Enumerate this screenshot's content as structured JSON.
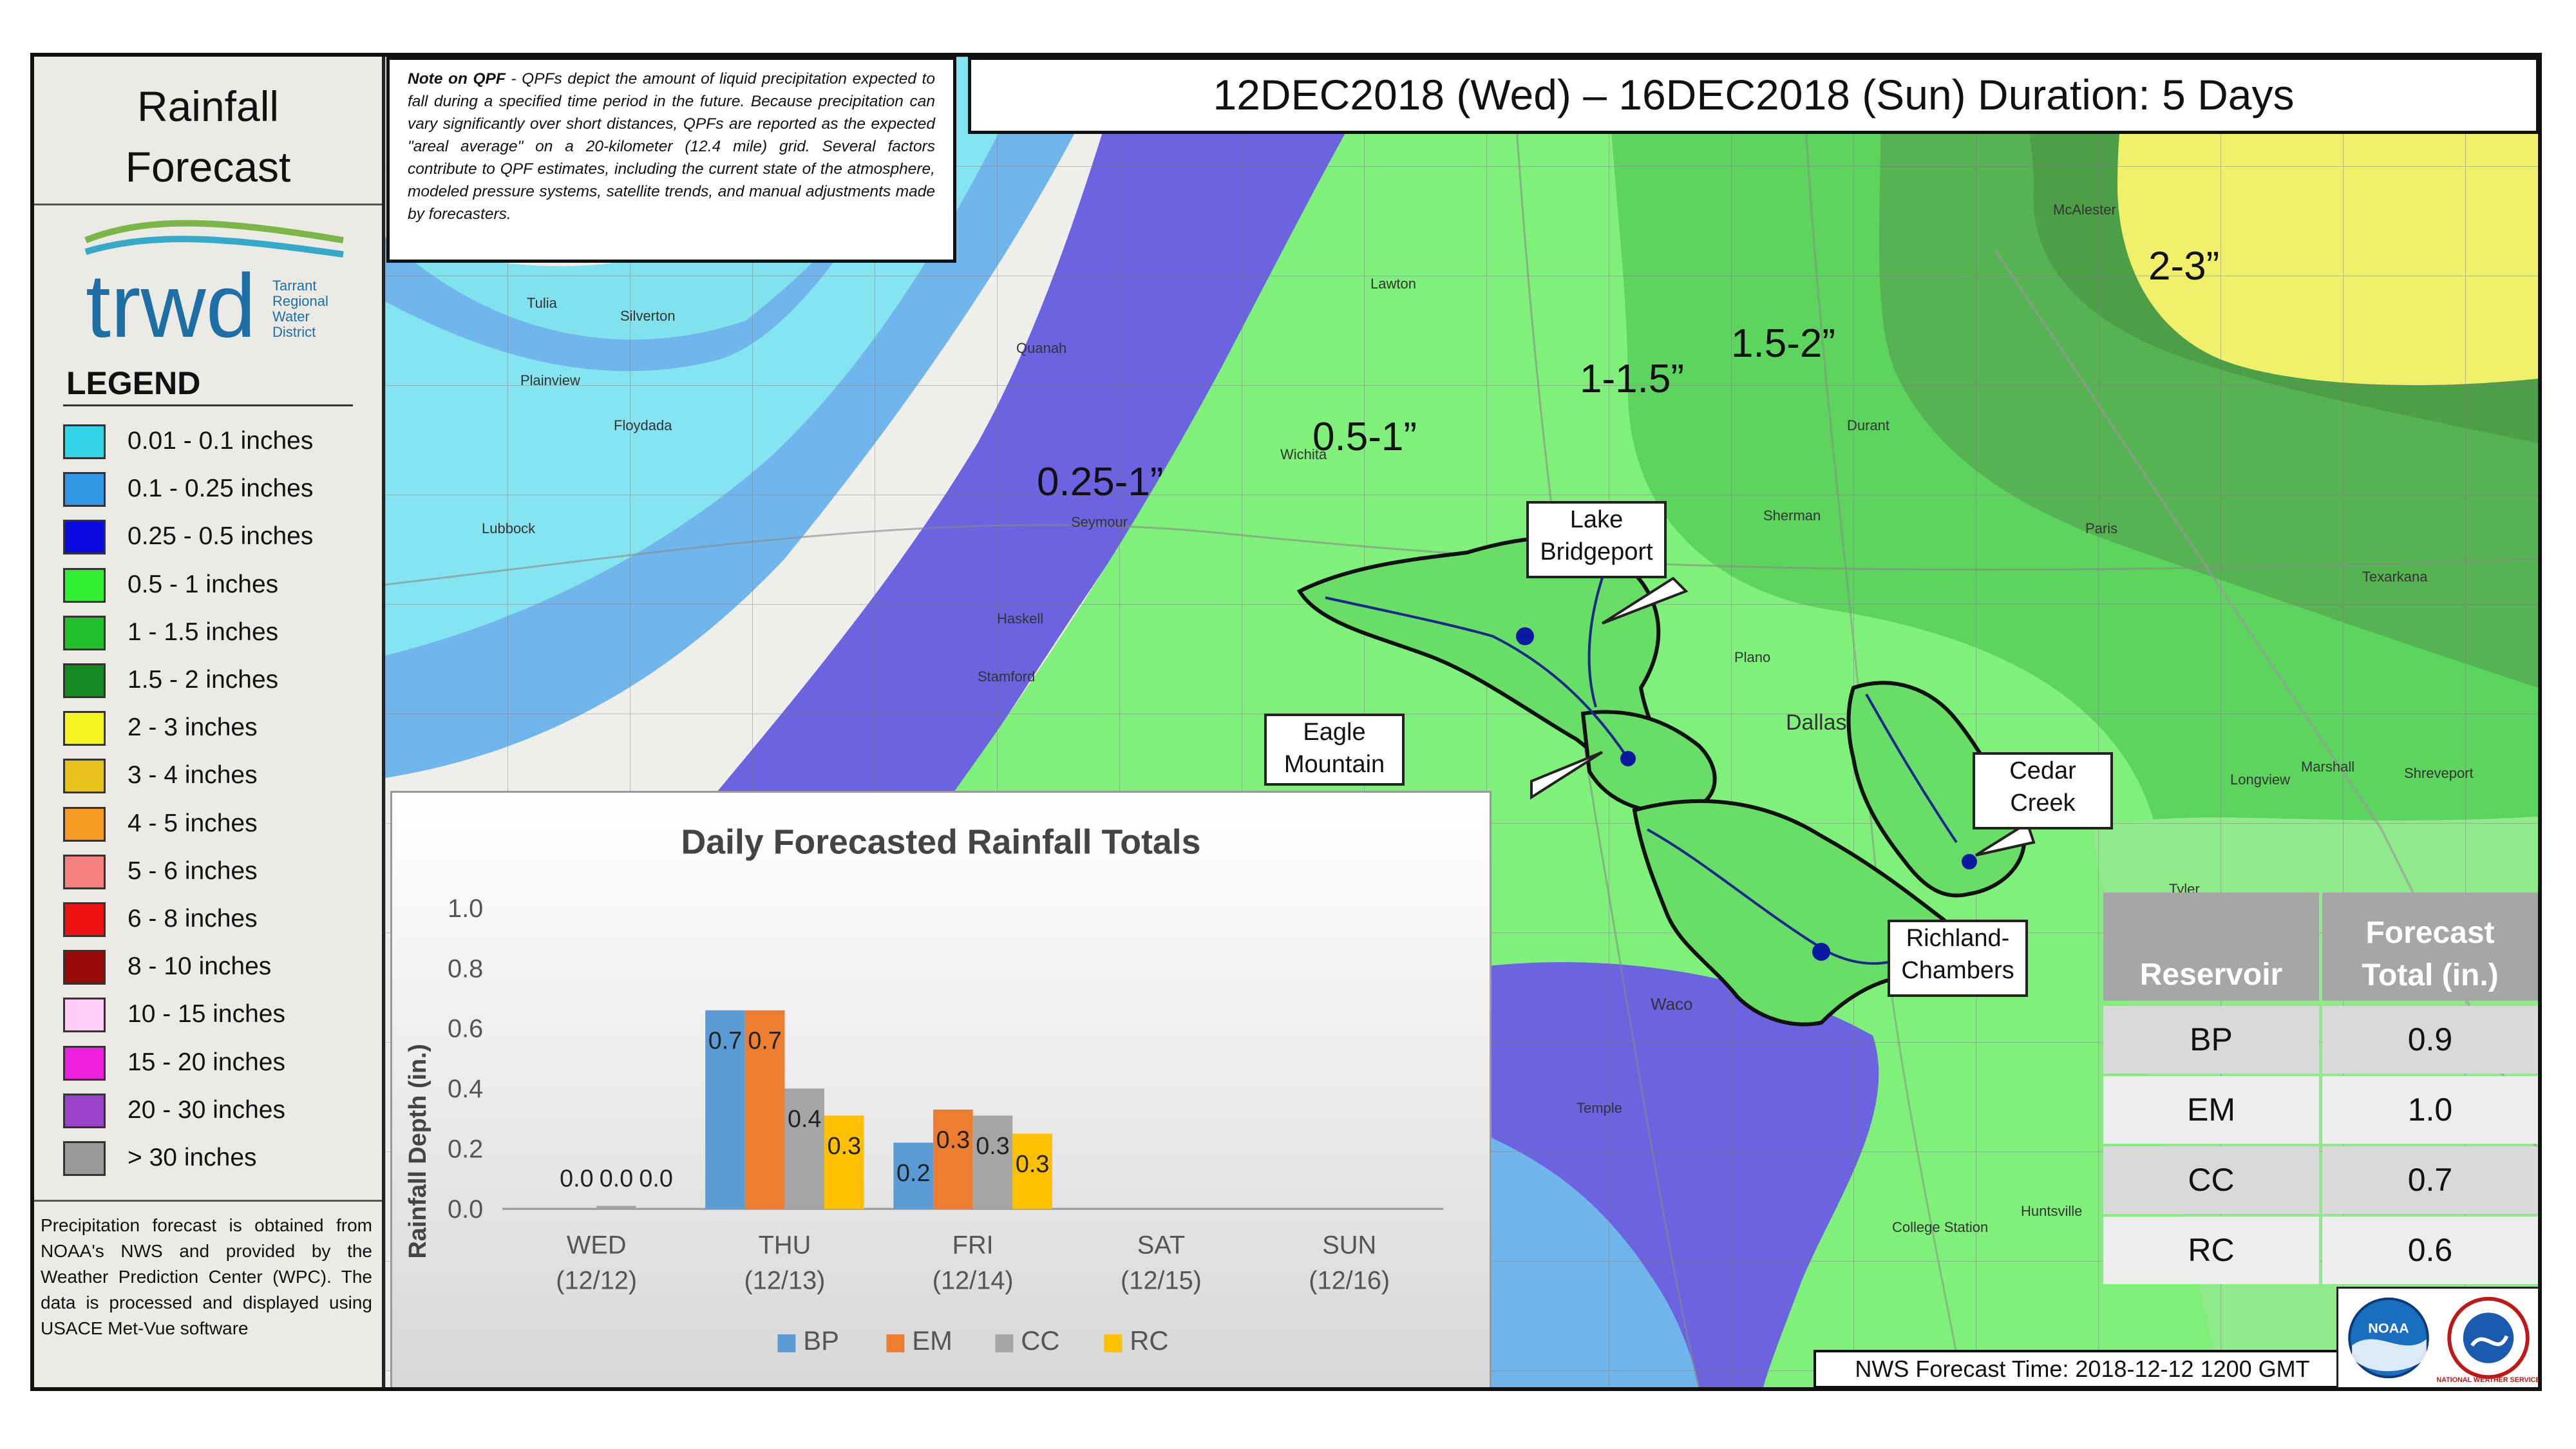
{
  "panel": {
    "title_line1": "Rainfall",
    "title_line2": "Forecast",
    "logo_text": "trwd",
    "logo_sub": [
      "Tarrant",
      "Regional",
      "Water",
      "District"
    ],
    "legend_title": "LEGEND",
    "legend": [
      {
        "label": "0.01 - 0.1 inches",
        "color": "#33d6e8"
      },
      {
        "label": "0.1 - 0.25 inches",
        "color": "#3399e6"
      },
      {
        "label": "0.25 - 0.5 inches",
        "color": "#0a0ae0"
      },
      {
        "label": "0.5 - 1 inches",
        "color": "#33f033"
      },
      {
        "label": "1 - 1.5 inches",
        "color": "#22c02a"
      },
      {
        "label": "1.5 - 2 inches",
        "color": "#178a22"
      },
      {
        "label": "2 - 3 inches",
        "color": "#f5f522"
      },
      {
        "label": "3 - 4 inches",
        "color": "#e6c21a"
      },
      {
        "label": "4 - 5 inches",
        "color": "#f59a22"
      },
      {
        "label": "5 - 6 inches",
        "color": "#f58080"
      },
      {
        "label": "6 - 8 inches",
        "color": "#ee1111"
      },
      {
        "label": "8 - 10 inches",
        "color": "#990a0a"
      },
      {
        "label": "10 - 15 inches",
        "color": "#ffccf5"
      },
      {
        "label": "15 - 20 inches",
        "color": "#f020e0"
      },
      {
        "label": "20 - 30 inches",
        "color": "#9944c8"
      },
      {
        "label": "> 30 inches",
        "color": "#999999"
      }
    ],
    "note": "Precipitation forecast is obtained from NOAA's NWS and provided by the Weather Prediction Center (WPC). The data is processed and displayed using USACE Met-Vue software"
  },
  "qpf_note": {
    "bold": "Note on QPF",
    "text": " - QPFs depict the amount of liquid precipitation expected to fall during a specified time period in the future. Because precipitation can vary significantly over short distances, QPFs are reported as the expected \"areal average\" on a 20-kilometer (12.4 mile) grid. Several factors contribute to QPF estimates, including the current state of the atmosphere, modeled pressure systems, satellite trends, and manual adjustments made by forecasters."
  },
  "duration": "12DEC2018 (Wed) – 16DEC2018 (Sun) Duration: 5 Days",
  "map_labels": {
    "band_025": "0.25-1”",
    "band_05": "0.5-1”",
    "band_1": "1-1.5”",
    "band_15": "1.5-2”",
    "band_2": "2-3”"
  },
  "callouts": {
    "lake_bridgeport": [
      "Lake",
      "Bridgeport"
    ],
    "eagle_mountain": [
      "Eagle",
      "Mountain"
    ],
    "cedar_creek": [
      "Cedar",
      "Creek"
    ],
    "richland_chambers": [
      "Richland-",
      "Chambers"
    ]
  },
  "towns": {
    "lubbock": "Lubbock",
    "dallas": "Dallas",
    "waco": "Waco",
    "plano": "Plano",
    "lawton": "Lawton",
    "wichita": "Wichita",
    "shreveport": "Shreveport",
    "tulia": "Tulia",
    "silverton": "Silverton",
    "plainview": "Plainview",
    "floydada": "Floydada",
    "seymour": "Seymour",
    "stamford": "Stamford",
    "haskell": "Haskell",
    "longview": "Longview",
    "marshall": "Marshall",
    "temple": "Temple",
    "college_station": "College Station",
    "huntsville": "Huntsville",
    "texarkana": "Texarkana",
    "sherman": "Sherman",
    "durant": "Durant",
    "mcalester": "McAlester",
    "paris": "Paris",
    "tyler": "Tyler",
    "quanah": "Quanah"
  },
  "chart_data": {
    "type": "bar",
    "title": "Daily Forecasted Rainfall Totals",
    "ylabel": "Rainfall Depth (in.)",
    "ylim": [
      0,
      1.0
    ],
    "yticks": [
      "0.0",
      "0.2",
      "0.4",
      "0.6",
      "0.8",
      "1.0"
    ],
    "categories": [
      [
        "WED",
        "(12/12)"
      ],
      [
        "THU",
        "(12/13)"
      ],
      [
        "FRI",
        "(12/14)"
      ],
      [
        "SAT",
        "(12/15)"
      ],
      [
        "SUN",
        "(12/16)"
      ]
    ],
    "series": [
      {
        "name": "BP",
        "color": "#5b9bd5",
        "values": [
          0.0,
          0.66,
          0.22,
          0,
          0
        ],
        "labels": [
          "",
          "0.7",
          "0.2",
          "",
          ""
        ]
      },
      {
        "name": "EM",
        "color": "#ed7d31",
        "values": [
          0.0,
          0.66,
          0.33,
          0,
          0
        ],
        "labels": [
          "0.0",
          "0.7",
          "0.3",
          "",
          ""
        ]
      },
      {
        "name": "CC",
        "color": "#a5a5a5",
        "values": [
          0.01,
          0.4,
          0.31,
          0,
          0
        ],
        "labels": [
          "0.0",
          "0.4",
          "0.3",
          "",
          ""
        ]
      },
      {
        "name": "RC",
        "color": "#ffc000",
        "values": [
          0.0,
          0.31,
          0.25,
          0,
          0
        ],
        "labels": [
          "0.0",
          "0.3",
          "0.3",
          "",
          ""
        ]
      }
    ],
    "label_text": [
      "0.00.0",
      "0.70.7",
      "0.4",
      "0.3",
      "0.2",
      "0.30.3",
      "0.3"
    ]
  },
  "table": {
    "header_reservoir": "Reservoir",
    "header_total_1": "Forecast",
    "header_total_2": "Total (in.)",
    "rows": [
      {
        "reservoir": "BP",
        "total": "0.9"
      },
      {
        "reservoir": "EM",
        "total": "1.0"
      },
      {
        "reservoir": "CC",
        "total": "0.7"
      },
      {
        "reservoir": "RC",
        "total": "0.6"
      }
    ]
  },
  "nws_time": "NWS Forecast Time: 2018-12-12 1200 GMT",
  "logos": {
    "noaa": "NOAA",
    "nws": "NATIONAL WEATHER SERVICE"
  }
}
